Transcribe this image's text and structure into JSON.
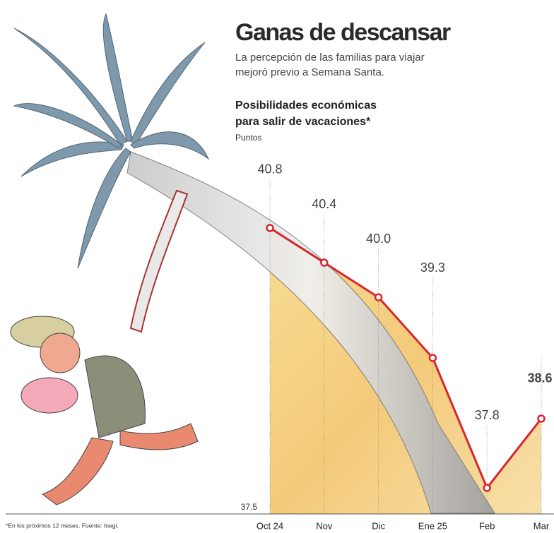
{
  "title": "Ganas de descansar",
  "subtitle": [
    "La percepción de las familias para viajar",
    "mejoró previo a Semana Santa."
  ],
  "footnote": "*En los próximos 12 meses.  Fuente: Inegi.",
  "chart_data": {
    "type": "line",
    "title": [
      "Posibilidades económicas",
      "para salir de vacaciones*"
    ],
    "y_label": "Puntos",
    "categories": [
      "Oct 24",
      "Nov",
      "Dic",
      "Ene 25",
      "Feb",
      "Mar"
    ],
    "values": [
      40.8,
      40.4,
      40.0,
      39.3,
      37.8,
      38.6
    ],
    "value_labels": [
      "40.8",
      "40.4",
      "40.0",
      "39.3",
      "37.8",
      "38.6"
    ],
    "color": "#d7262e",
    "area_color": "#f2c46a",
    "ylim": [
      37.5,
      41.5
    ],
    "yticks": [
      37.5
    ]
  }
}
